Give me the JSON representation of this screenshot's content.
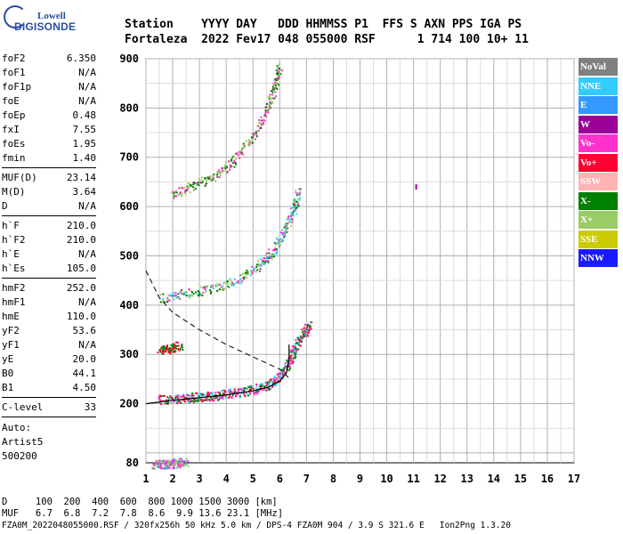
{
  "logo": {
    "top": "Lowell",
    "main": "DIGISONDE"
  },
  "header": {
    "line1": "Station    YYYY DAY   DDD HHMMSS P1  FFS S AXN PPS IGA PS",
    "line2": "Fortaleza  2022 Fev17 048 055000 RSF      1 714 100 10+ 11"
  },
  "params_groups": [
    [
      {
        "k": "foF2",
        "v": "6.350"
      },
      {
        "k": "foF1",
        "v": "N/A"
      },
      {
        "k": "foF1p",
        "v": "N/A"
      },
      {
        "k": "foE",
        "v": "N/A"
      },
      {
        "k": "foEp",
        "v": "0.48"
      },
      {
        "k": "fxI",
        "v": "7.55"
      },
      {
        "k": "foEs",
        "v": "1.95"
      },
      {
        "k": "fmin",
        "v": "1.40"
      }
    ],
    [
      {
        "k": "MUF(D)",
        "v": "23.14"
      },
      {
        "k": "M(D)",
        "v": "3.64"
      },
      {
        "k": "D",
        "v": "N/A"
      }
    ],
    [
      {
        "k": "h`F",
        "v": "210.0"
      },
      {
        "k": "h`F2",
        "v": "210.0"
      },
      {
        "k": "h`E",
        "v": "N/A"
      },
      {
        "k": "h`Es",
        "v": "105.0"
      }
    ],
    [
      {
        "k": "hmF2",
        "v": "252.0"
      },
      {
        "k": "hmF1",
        "v": "N/A"
      },
      {
        "k": "hmE",
        "v": "110.0"
      },
      {
        "k": "yF2",
        "v": "53.6"
      },
      {
        "k": "yF1",
        "v": "N/A"
      },
      {
        "k": "yE",
        "v": "20.0"
      },
      {
        "k": "B0",
        "v": "44.1"
      },
      {
        "k": "B1",
        "v": "4.50"
      }
    ],
    [
      {
        "k": "C-level",
        "v": "33"
      }
    ]
  ],
  "auto": [
    "Auto:",
    "Artist5",
    "500200"
  ],
  "legend": [
    {
      "label": "NoVal",
      "color": "#808080"
    },
    {
      "label": "NNE",
      "color": "#33ccff"
    },
    {
      "label": "E",
      "color": "#3399ff"
    },
    {
      "label": "W",
      "color": "#990099"
    },
    {
      "label": "Vo-",
      "color": "#ff33cc"
    },
    {
      "label": "Vo+",
      "color": "#ff0033"
    },
    {
      "label": "SSW",
      "color": "#ffb3b3"
    },
    {
      "label": "X-",
      "color": "#008000"
    },
    {
      "label": "X+",
      "color": "#99cc66"
    },
    {
      "label": "SSE",
      "color": "#cccc00"
    },
    {
      "label": "NNW",
      "color": "#1a1aff"
    }
  ],
  "chart_data": {
    "type": "scatter",
    "title": "",
    "xlabel": "",
    "ylabel": "",
    "xlim": [
      1,
      17
    ],
    "ylim": [
      80,
      900
    ],
    "x_ticks": [
      1,
      2,
      3,
      4,
      5,
      6,
      7,
      8,
      9,
      10,
      11,
      12,
      13,
      14,
      15,
      16,
      17
    ],
    "y_ticks": [
      80,
      200,
      300,
      400,
      500,
      600,
      700,
      800,
      900
    ],
    "grid": true,
    "legend_position": "right",
    "traces": [
      {
        "name": "Es",
        "color_mix": [
          "#99cc66",
          "#ff33cc",
          "#3399ff"
        ],
        "points": [
          [
            1.3,
            83
          ],
          [
            1.6,
            83
          ],
          [
            1.9,
            84
          ],
          [
            2.2,
            86
          ],
          [
            2.5,
            87
          ]
        ]
      },
      {
        "name": "F-trace",
        "color_mix": [
          "#ff0033",
          "#ff33cc",
          "#008000",
          "#33ccff"
        ],
        "points": [
          [
            1.4,
            215
          ],
          [
            2.0,
            215
          ],
          [
            2.5,
            218
          ],
          [
            3.0,
            220
          ],
          [
            3.5,
            222
          ],
          [
            4.0,
            226
          ],
          [
            4.5,
            230
          ],
          [
            5.0,
            235
          ],
          [
            5.5,
            242
          ],
          [
            5.9,
            255
          ],
          [
            6.2,
            275
          ],
          [
            6.4,
            300
          ],
          [
            6.6,
            325
          ],
          [
            6.9,
            350
          ],
          [
            7.1,
            370
          ]
        ]
      },
      {
        "name": "F-2hop",
        "color_mix": [
          "#ff33cc",
          "#008000",
          "#99cc66",
          "#33ccff"
        ],
        "points": [
          [
            1.6,
            420
          ],
          [
            2.5,
            430
          ],
          [
            3.5,
            440
          ],
          [
            4.5,
            460
          ],
          [
            5.3,
            490
          ],
          [
            5.8,
            520
          ],
          [
            6.2,
            560
          ],
          [
            6.5,
            600
          ],
          [
            6.7,
            640
          ]
        ]
      },
      {
        "name": "F-3hop",
        "color_mix": [
          "#ff33cc",
          "#008000",
          "#99cc66"
        ],
        "points": [
          [
            2.0,
            630
          ],
          [
            2.8,
            650
          ],
          [
            3.6,
            670
          ],
          [
            4.3,
            700
          ],
          [
            5.0,
            750
          ],
          [
            5.5,
            800
          ],
          [
            5.8,
            850
          ],
          [
            6.0,
            890
          ]
        ]
      },
      {
        "name": "Es-2hop",
        "color_mix": [
          "#ff0033",
          "#008000"
        ],
        "points": [
          [
            1.5,
            315
          ],
          [
            1.9,
            318
          ],
          [
            2.3,
            325
          ]
        ]
      }
    ],
    "profile_curve": [
      [
        1.0,
        200
      ],
      [
        2.0,
        207
      ],
      [
        3.0,
        212
      ],
      [
        4.0,
        218
      ],
      [
        5.0,
        226
      ],
      [
        5.6,
        234
      ],
      [
        6.0,
        246
      ],
      [
        6.25,
        262
      ],
      [
        6.35,
        290
      ],
      [
        6.35,
        320
      ]
    ],
    "dashed_curve": [
      [
        1.0,
        470
      ],
      [
        1.5,
        415
      ],
      [
        2.0,
        385
      ],
      [
        3.0,
        350
      ],
      [
        4.0,
        320
      ],
      [
        5.0,
        295
      ],
      [
        6.0,
        270
      ],
      [
        6.35,
        252
      ]
    ],
    "isolated_point": {
      "x": 11.1,
      "y": 640
    }
  },
  "footer": {
    "row1": "D     100  200  400  600  800 1000 1500 3000 [km]",
    "row2": "MUF   6.7  6.8  7.2  7.8  8.6  9.9 13.6 23.1 [MHz]",
    "row3": "FZA0M_2022048055000.RSF / 320fx256h 50 kHz 5.0 km / DPS-4 FZA0M 904 / 3.9 S 321.6 E   Ion2Png 1.3.20"
  }
}
